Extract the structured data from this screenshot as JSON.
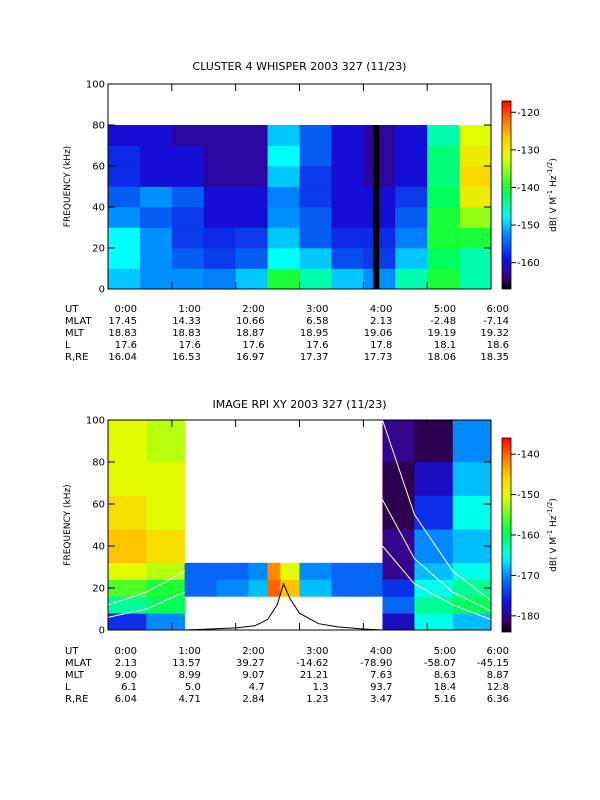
{
  "chart_data": [
    {
      "type": "heatmap",
      "title": "CLUSTER 4 WHISPER 2003 327 (11/23)",
      "ylabel": "FREQUENCY (kHz)",
      "xlim": [
        0,
        6
      ],
      "xticks": [
        0,
        1,
        2,
        3,
        4,
        5,
        6
      ],
      "ylim": [
        0,
        100
      ],
      "yticks": [
        0,
        20,
        40,
        60,
        80,
        100
      ],
      "x_edges": [
        0,
        0.5,
        1,
        1.5,
        2,
        2.5,
        3,
        3.5,
        4,
        4.5,
        5,
        5.5,
        6
      ],
      "y_edges": [
        0,
        10,
        20,
        30,
        40,
        50,
        60,
        70,
        80
      ],
      "values": [
        [
          -150,
          -152,
          -152,
          -153,
          -150,
          -140,
          -145,
          -150,
          -152,
          -145,
          -140,
          -145
        ],
        [
          -148,
          -152,
          -155,
          -157,
          -155,
          -148,
          -150,
          -156,
          -157,
          -150,
          -142,
          -145
        ],
        [
          -148,
          -152,
          -157,
          -158,
          -157,
          -150,
          -155,
          -158,
          -158,
          -153,
          -140,
          -140
        ],
        [
          -152,
          -155,
          -157,
          -160,
          -160,
          -152,
          -155,
          -160,
          -160,
          -155,
          -140,
          -135
        ],
        [
          -155,
          -152,
          -155,
          -160,
          -160,
          -153,
          -157,
          -160,
          -160,
          -157,
          -142,
          -130
        ],
        [
          -158,
          -160,
          -160,
          -162,
          -162,
          -150,
          -157,
          -160,
          -162,
          -160,
          -143,
          -128
        ],
        [
          -158,
          -160,
          -160,
          -162,
          -162,
          -148,
          -155,
          -160,
          -162,
          -160,
          -143,
          -130
        ],
        [
          -160,
          -160,
          -162,
          -162,
          -162,
          -150,
          -155,
          -160,
          -162,
          -160,
          -145,
          -132
        ]
      ],
      "data_gaps": [
        [
          4.15,
          4.25
        ]
      ],
      "colorbar": {
        "label": [
          "dB( V M",
          "-1",
          " Hz",
          "-1/2",
          ")"
        ],
        "lim": [
          -167,
          -117
        ],
        "ticks": [
          -160,
          -150,
          -140,
          -130,
          -120
        ]
      },
      "ephemeris": [
        {
          "name": "UT",
          "values": [
            "0:00",
            "1:00",
            "2:00",
            "3:00",
            "4:00",
            "5:00",
            "6:00"
          ]
        },
        {
          "name": "MLAT",
          "values": [
            "17.45",
            "14.33",
            "10.66",
            "6.58",
            "2.13",
            "-2.48",
            "-7.14"
          ]
        },
        {
          "name": "MLT",
          "values": [
            "18.83",
            "18.83",
            "18.87",
            "18.95",
            "19.06",
            "19.19",
            "19.32"
          ]
        },
        {
          "name": "L",
          "values": [
            "17.6",
            "17.6",
            "17.6",
            "17.6",
            "17.8",
            "18.1",
            "18.6"
          ]
        },
        {
          "name": "R,RE",
          "values": [
            "16.04",
            "16.53",
            "16.97",
            "17.37",
            "17.73",
            "18.06",
            "18.35"
          ]
        }
      ]
    },
    {
      "type": "heatmap",
      "title": "IMAGE RPI XY 2003 327 (11/23)",
      "ylabel": "FREQUENCY (kHz)",
      "xlim": [
        0,
        6
      ],
      "xticks": [
        0,
        1,
        2,
        3,
        4,
        5,
        6
      ],
      "ylim": [
        0,
        100
      ],
      "yticks": [
        0,
        20,
        40,
        60,
        80,
        100
      ],
      "x_edges": [
        0,
        0.6,
        1.2,
        1.7,
        2.2,
        2.5,
        2.7,
        3.0,
        3.5,
        4.3,
        4.8,
        5.4,
        6.0
      ],
      "y_edges": [
        0,
        8,
        16,
        24,
        32,
        48,
        64,
        80,
        100
      ],
      "values": [
        [
          -175,
          -170,
          null,
          null,
          null,
          null,
          null,
          null,
          null,
          -178,
          -165,
          -168
        ],
        [
          -162,
          -160,
          null,
          null,
          null,
          null,
          null,
          null,
          null,
          -172,
          -162,
          -160
        ],
        [
          -156,
          -158,
          -172,
          -170,
          -168,
          -140,
          -145,
          -168,
          -172,
          -175,
          -165,
          -162
        ],
        [
          -150,
          -152,
          -172,
          -172,
          -170,
          -142,
          -150,
          -170,
          -172,
          -180,
          -168,
          -165
        ],
        [
          -145,
          -147,
          null,
          null,
          null,
          null,
          null,
          null,
          null,
          -180,
          -170,
          -168
        ],
        [
          -147,
          -150,
          null,
          null,
          null,
          null,
          null,
          null,
          null,
          -182,
          -175,
          -165
        ],
        [
          -150,
          -150,
          null,
          null,
          null,
          null,
          null,
          null,
          null,
          -182,
          -178,
          -168
        ],
        [
          -150,
          -152,
          null,
          null,
          null,
          null,
          null,
          null,
          null,
          -180,
          -182,
          -170
        ]
      ],
      "lines": [
        {
          "color": "#000000",
          "x": [
            1.2,
            1.6,
            2.0,
            2.3,
            2.5,
            2.65,
            2.75,
            2.85,
            3.0,
            3.3,
            3.6,
            4.0,
            4.3
          ],
          "values": [
            0,
            0.5,
            1,
            2,
            5,
            12,
            22,
            15,
            8,
            3,
            1.5,
            0.5,
            0
          ]
        },
        {
          "color": "#ffffff",
          "x": [
            0,
            0.6,
            1.2
          ],
          "values": [
            6,
            10,
            18
          ]
        },
        {
          "color": "#ffffff",
          "x": [
            0,
            0.6,
            1.2
          ],
          "values": [
            12,
            18,
            28
          ]
        },
        {
          "color": "#ffffff",
          "x": [
            4.3,
            4.8,
            5.4,
            6.0
          ],
          "values": [
            100,
            55,
            28,
            14
          ]
        },
        {
          "color": "#ffffff",
          "x": [
            4.3,
            4.8,
            5.4,
            6.0
          ],
          "values": [
            62,
            34,
            18,
            9
          ]
        },
        {
          "color": "#ffffff",
          "x": [
            4.3,
            4.8,
            5.4,
            6.0
          ],
          "values": [
            40,
            22,
            12,
            5
          ]
        }
      ],
      "colorbar": {
        "label": [
          "dB( V M",
          "-1",
          " Hz",
          "-1/2",
          ")"
        ],
        "lim": [
          -184,
          -136
        ],
        "ticks": [
          -180,
          -170,
          -160,
          -150,
          -140
        ]
      },
      "ephemeris": [
        {
          "name": "UT",
          "values": [
            "0:00",
            "1:00",
            "2:00",
            "3:00",
            "4:00",
            "5:00",
            "6:00"
          ]
        },
        {
          "name": "MLAT",
          "values": [
            "2.13",
            "13.57",
            "39.27",
            "-14.62",
            "-78.90",
            "-58.07",
            "-45.15"
          ]
        },
        {
          "name": "MLT",
          "values": [
            "9.00",
            "8.99",
            "9.07",
            "21.21",
            "7.63",
            "8.63",
            "8.87"
          ]
        },
        {
          "name": "L",
          "values": [
            "6.1",
            "5.0",
            "4.7",
            "1.3",
            "93.7",
            "18.4",
            "12.8"
          ]
        },
        {
          "name": "R,RE",
          "values": [
            "6.04",
            "4.71",
            "2.84",
            "1.23",
            "3.47",
            "5.16",
            "6.36"
          ]
        }
      ]
    }
  ]
}
